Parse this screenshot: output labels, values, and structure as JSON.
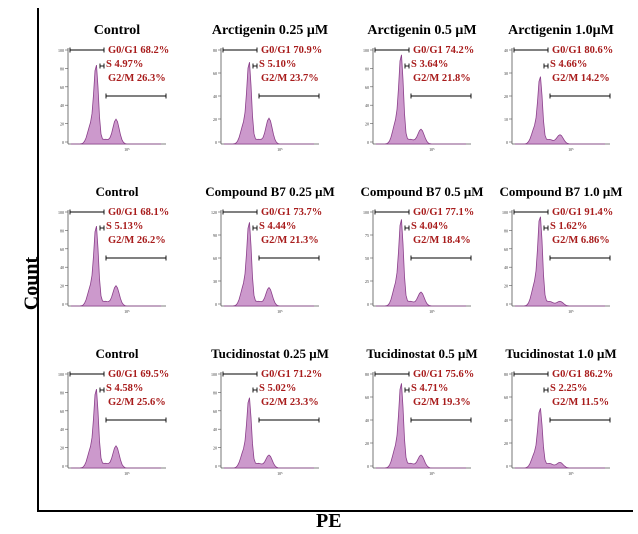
{
  "figure": {
    "xlabel": "PE",
    "ylabel": "Count"
  },
  "style": {
    "fill": "#cc99cc",
    "stroke": "#8a3f8a",
    "gate_text": "#a81c1c",
    "axis": "#000000"
  },
  "chart_data": [
    {
      "type": "area",
      "title": "Control",
      "ymax_tick": "100",
      "yticks": [
        "100",
        "80",
        "60",
        "40",
        "20",
        "0"
      ],
      "xtick": "10⁵",
      "gates": [
        {
          "name": "G0/G1",
          "value": "68.2%"
        },
        {
          "name": "S",
          "value": "4.97%"
        },
        {
          "name": "G2/M",
          "value": "26.3%"
        }
      ],
      "labels": [
        "G0/G1 68.2%",
        "S 4.97%",
        "G2/M 26.3%"
      ]
    },
    {
      "type": "area",
      "title": "Arctigenin 0.25 μM",
      "yticks": [
        "80",
        "60",
        "40",
        "20",
        "0"
      ],
      "xtick": "10⁵",
      "gates": [
        {
          "name": "G0/G1",
          "value": "70.9%"
        },
        {
          "name": "S",
          "value": "5.10%"
        },
        {
          "name": "G2/M",
          "value": "23.7%"
        }
      ],
      "labels": [
        "G0/G1 70.9%",
        "S 5.10%",
        "G2/M 23.7%"
      ]
    },
    {
      "type": "area",
      "title": "Arctigenin 0.5 μM",
      "yticks": [
        "100",
        "80",
        "60",
        "40",
        "20",
        "0"
      ],
      "xtick": "10⁵",
      "gates": [
        {
          "name": "G0/G1",
          "value": "74.2%"
        },
        {
          "name": "S",
          "value": "3.64%"
        },
        {
          "name": "G2/M",
          "value": "21.8%"
        }
      ],
      "labels": [
        "G0/G1 74.2%",
        "S 3.64%",
        "G2/M 21.8%"
      ]
    },
    {
      "type": "area",
      "title": "Arctigenin 1.0μM",
      "yticks": [
        "40",
        "30",
        "20",
        "10",
        "0"
      ],
      "xtick": "10⁵",
      "gates": [
        {
          "name": "G0/G1",
          "value": "80.6%"
        },
        {
          "name": "S",
          "value": "4.66%"
        },
        {
          "name": "G2/M",
          "value": "14.2%"
        }
      ],
      "labels": [
        "G0/G1 80.6%",
        "S 4.66%",
        "G2/M 14.2%"
      ]
    },
    {
      "type": "area",
      "title": "Control",
      "yticks": [
        "100",
        "80",
        "60",
        "40",
        "20",
        "0"
      ],
      "xtick": "10⁵",
      "gates": [
        {
          "name": "G0/G1",
          "value": "68.1%"
        },
        {
          "name": "S",
          "value": "5.13%"
        },
        {
          "name": "G2/M",
          "value": "26.2%"
        }
      ],
      "labels": [
        "G0/G1 68.1%",
        "S 5.13%",
        "G2/M 26.2%"
      ]
    },
    {
      "type": "area",
      "title": "Compound B7 0.25 μM",
      "yticks": [
        "120",
        "90",
        "60",
        "30",
        "0"
      ],
      "xtick": "10⁵",
      "gates": [
        {
          "name": "G0/G1",
          "value": "73.7%"
        },
        {
          "name": "S",
          "value": "4.44%"
        },
        {
          "name": "G2/M",
          "value": "21.3%"
        }
      ],
      "labels": [
        "G0/G1 73.7%",
        "S 4.44%",
        "G2/M 21.3%"
      ]
    },
    {
      "type": "area",
      "title": "Compound B7 0.5 μM",
      "yticks": [
        "100",
        "75",
        "50",
        "25",
        "0"
      ],
      "xtick": "10⁵",
      "gates": [
        {
          "name": "G0/G1",
          "value": "77.1%"
        },
        {
          "name": "S",
          "value": "4.04%"
        },
        {
          "name": "G2/M",
          "value": "18.4%"
        }
      ],
      "labels": [
        "G0/G1 77.1%",
        "S 4.04%",
        "G2/M 18.4%"
      ]
    },
    {
      "type": "area",
      "title": "Compound B7 1.0 μM",
      "yticks": [
        "100",
        "80",
        "60",
        "40",
        "20",
        "0"
      ],
      "xtick": "10⁵",
      "gates": [
        {
          "name": "G0/G1",
          "value": "91.4%"
        },
        {
          "name": "S",
          "value": "1.62%"
        },
        {
          "name": "G2/M",
          "value": "6.86%"
        }
      ],
      "labels": [
        "G0/G1 91.4%",
        "S 1.62%",
        "G2/M 6.86%"
      ]
    },
    {
      "type": "area",
      "title": "Control",
      "yticks": [
        "100",
        "80",
        "60",
        "40",
        "20",
        "0"
      ],
      "xtick": "10⁵",
      "gates": [
        {
          "name": "G0/G1",
          "value": "69.5%"
        },
        {
          "name": "S",
          "value": "4.58%"
        },
        {
          "name": "G2/M",
          "value": "25.6%"
        }
      ],
      "labels": [
        "G0/G1 69.5%",
        "S 4.58%",
        "G2/M 25.6%"
      ]
    },
    {
      "type": "area",
      "title": "Tucidinostat 0.25 μM",
      "yticks": [
        "100",
        "80",
        "60",
        "40",
        "20",
        "0"
      ],
      "xtick": "10⁵",
      "gates": [
        {
          "name": "G0/G1",
          "value": "71.2%"
        },
        {
          "name": "S",
          "value": "5.02%"
        },
        {
          "name": "G2/M",
          "value": "23.3%"
        }
      ],
      "labels": [
        "G0/G1 71.2%",
        "S 5.02%",
        "G2/M 23.3%"
      ]
    },
    {
      "type": "area",
      "title": "Tucidinostat 0.5 μM",
      "yticks": [
        "80",
        "60",
        "40",
        "20",
        "0"
      ],
      "xtick": "10⁵",
      "gates": [
        {
          "name": "G0/G1",
          "value": "75.6%"
        },
        {
          "name": "S",
          "value": "4.71%"
        },
        {
          "name": "G2/M",
          "value": "19.3%"
        }
      ],
      "labels": [
        "G0/G1 75.6%",
        "S 4.71%",
        "G2/M 19.3%"
      ]
    },
    {
      "type": "area",
      "title": "Tucidinostat 1.0 μM",
      "yticks": [
        "80",
        "60",
        "40",
        "20",
        "0"
      ],
      "xtick": "10⁵",
      "gates": [
        {
          "name": "G0/G1",
          "value": "86.2%"
        },
        {
          "name": "S",
          "value": "2.25%"
        },
        {
          "name": "G2/M",
          "value": "11.5%"
        }
      ],
      "labels": [
        "G0/G1 86.2%",
        "S 2.25%",
        "G2/M 11.5%"
      ]
    }
  ]
}
